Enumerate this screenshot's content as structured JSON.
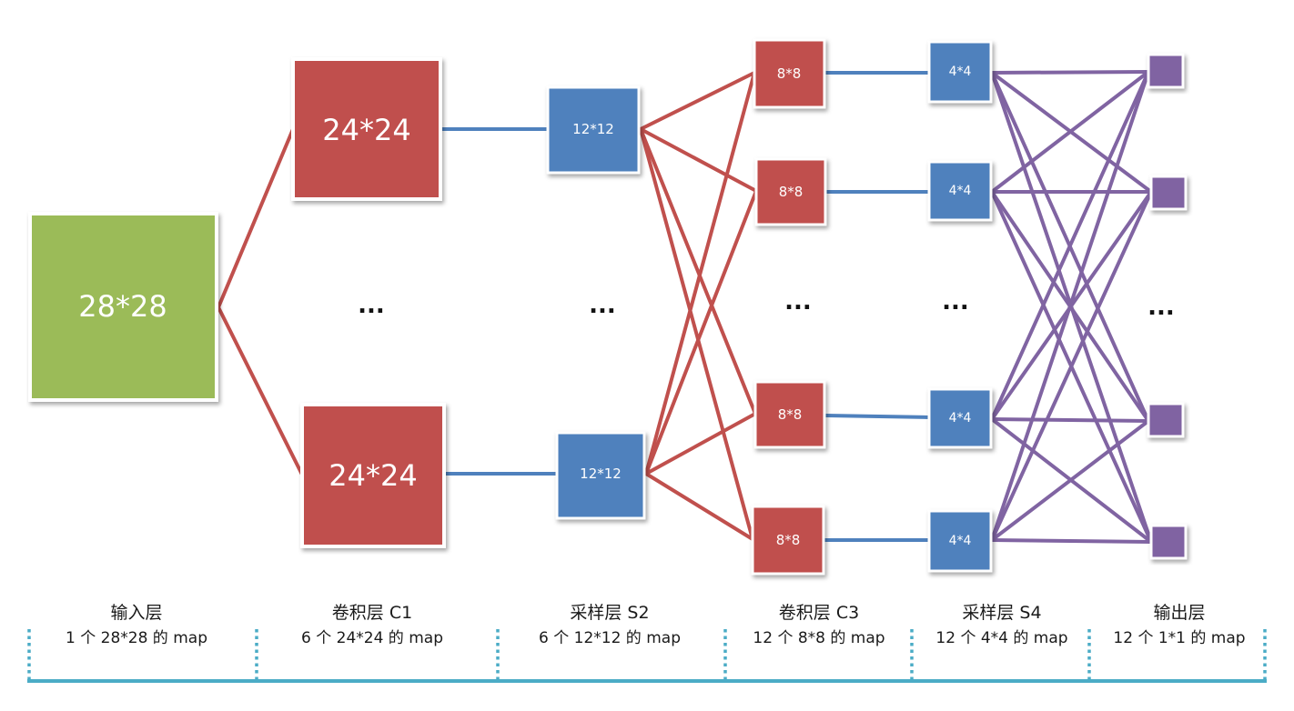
{
  "colors": {
    "input": "#9bbb59",
    "conv": "#c0504d",
    "pool": "#4f81bd",
    "output": "#8064a2",
    "conv_line": "#c0504d",
    "pool_line": "#4f81bd",
    "out_line": "#8064a2",
    "axis": "#4bacc6"
  },
  "boxes": {
    "input": "28*28",
    "c1_top": "24*24",
    "c1_bottom": "24*24",
    "s2_top": "12*12",
    "s2_bottom": "12*12",
    "c3_1": "8*8",
    "c3_2": "8*8",
    "c3_3": "8*8",
    "c3_4": "8*8",
    "s4_1": "4*4",
    "s4_2": "4*4",
    "s4_3": "4*4",
    "s4_4": "4*4"
  },
  "ellipsis": "...",
  "layers": [
    {
      "name": "输入层",
      "desc": "1 个 28*28 的 map"
    },
    {
      "name": "卷积层 C1",
      "desc": "6 个 24*24 的 map"
    },
    {
      "name": "采样层 S2",
      "desc": "6 个 12*12 的 map"
    },
    {
      "name": "卷积层 C3",
      "desc": "12 个 8*8 的 map"
    },
    {
      "name": "采样层 S4",
      "desc": "12 个 4*4 的 map"
    },
    {
      "name": "输出层",
      "desc": "12 个 1*1 的 map"
    }
  ]
}
